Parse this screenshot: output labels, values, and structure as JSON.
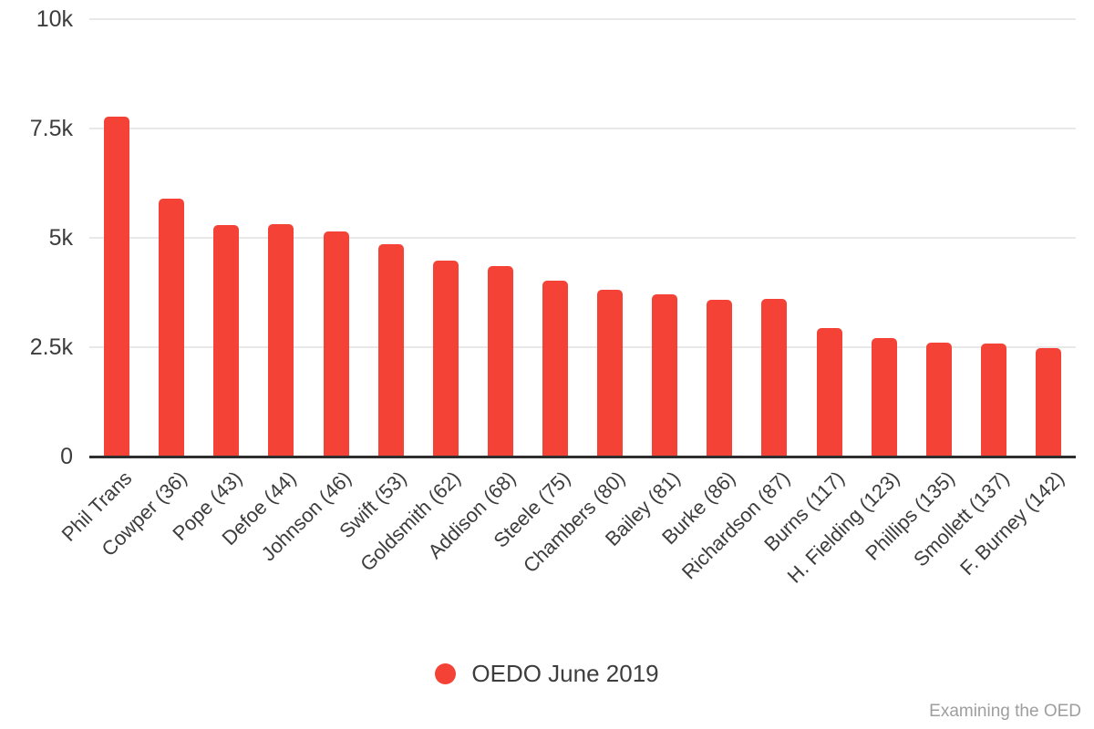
{
  "chart_data": {
    "type": "bar",
    "title": "",
    "xlabel": "",
    "ylabel": "",
    "categories": [
      "Phil Trans",
      "Cowper (36)",
      "Pope (43)",
      "Defoe (44)",
      "Johnson (46)",
      "Swift (53)",
      "Goldsmith (62)",
      "Addison (68)",
      "Steele (75)",
      "Chambers (80)",
      "Bailey (81)",
      "Burke (86)",
      "Richardson (87)",
      "Burns (117)",
      "H. Fielding (123)",
      "Phillips (135)",
      "Smollett (137)",
      "F. Burney (142)"
    ],
    "series": [
      {
        "name": "OEDO June 2019",
        "values": [
          7770,
          5900,
          5290,
          5310,
          5150,
          4850,
          4480,
          4350,
          4020,
          3810,
          3710,
          3580,
          3600,
          2940,
          2710,
          2600,
          2580,
          2480
        ]
      }
    ],
    "ylim": [
      0,
      10000
    ],
    "yticks": [
      {
        "value": 0,
        "label": "0"
      },
      {
        "value": 2500,
        "label": "2.5k"
      },
      {
        "value": 5000,
        "label": "5k"
      },
      {
        "value": 7500,
        "label": "7.5k"
      },
      {
        "value": 10000,
        "label": "10k"
      }
    ],
    "grid": true,
    "legend_position": "bottom",
    "bar_color": "#f44336"
  },
  "legend": {
    "label": "OEDO June 2019",
    "marker_color": "#f44336"
  },
  "footer": {
    "watermark": "Examining the OED"
  }
}
